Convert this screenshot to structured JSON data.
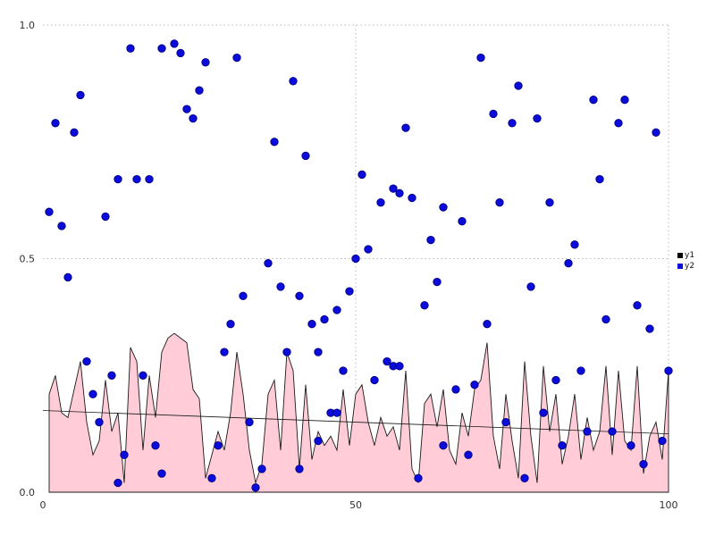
{
  "chart_data": {
    "type": "mixed",
    "title": "",
    "xlabel": "",
    "ylabel": "",
    "xlim": [
      0,
      100
    ],
    "ylim": [
      0,
      1
    ],
    "grid": "dotted",
    "legend_position": "right-outside",
    "xticks": [
      {
        "label": "0",
        "value": 0
      },
      {
        "label": "50",
        "value": 50
      },
      {
        "label": "100",
        "value": 100
      }
    ],
    "yticks": [
      {
        "label": "0.0",
        "value": 0
      },
      {
        "label": "0.5",
        "value": 0.5
      },
      {
        "label": "1.0",
        "value": 1
      }
    ],
    "series": [
      {
        "name": "y1",
        "type": "area",
        "fill_color": "#ffccd8",
        "line_color": "#1a1a1a",
        "x": [
          1,
          2,
          3,
          4,
          5,
          6,
          7,
          8,
          9,
          10,
          11,
          12,
          13,
          14,
          15,
          16,
          17,
          18,
          19,
          20,
          21,
          22,
          23,
          24,
          25,
          26,
          27,
          28,
          29,
          30,
          31,
          32,
          33,
          34,
          35,
          36,
          37,
          38,
          39,
          40,
          41,
          42,
          43,
          44,
          45,
          46,
          47,
          48,
          49,
          50,
          51,
          52,
          53,
          54,
          55,
          56,
          57,
          58,
          59,
          60,
          61,
          62,
          63,
          64,
          65,
          66,
          67,
          68,
          69,
          70,
          71,
          72,
          73,
          74,
          75,
          76,
          77,
          78,
          79,
          80,
          81,
          82,
          83,
          84,
          85,
          86,
          87,
          88,
          89,
          90,
          91,
          92,
          93,
          94,
          95,
          96,
          97,
          98,
          99,
          100
        ],
        "values": [
          0.21,
          0.25,
          0.17,
          0.16,
          0.22,
          0.28,
          0.15,
          0.08,
          0.11,
          0.24,
          0.13,
          0.17,
          0.02,
          0.31,
          0.28,
          0.09,
          0.25,
          0.16,
          0.3,
          0.33,
          0.34,
          0.33,
          0.32,
          0.22,
          0.2,
          0.03,
          0.08,
          0.13,
          0.09,
          0.17,
          0.3,
          0.21,
          0.09,
          0.02,
          0.06,
          0.21,
          0.24,
          0.09,
          0.3,
          0.26,
          0.05,
          0.23,
          0.07,
          0.13,
          0.1,
          0.12,
          0.09,
          0.22,
          0.1,
          0.21,
          0.23,
          0.15,
          0.1,
          0.16,
          0.12,
          0.14,
          0.09,
          0.26,
          0.05,
          0.02,
          0.19,
          0.21,
          0.14,
          0.22,
          0.09,
          0.06,
          0.17,
          0.12,
          0.22,
          0.24,
          0.32,
          0.12,
          0.05,
          0.21,
          0.11,
          0.03,
          0.28,
          0.12,
          0.02,
          0.27,
          0.13,
          0.21,
          0.06,
          0.12,
          0.21,
          0.07,
          0.16,
          0.09,
          0.13,
          0.27,
          0.08,
          0.26,
          0.11,
          0.09,
          0.27,
          0.04,
          0.12,
          0.15,
          0.07,
          0.26
        ]
      },
      {
        "name": "y2",
        "type": "scatter",
        "color": "#0b0bdc",
        "edge_color": "#000080",
        "x": [
          1,
          2,
          3,
          4,
          5,
          6,
          7,
          8,
          9,
          10,
          11,
          12,
          12,
          13,
          14,
          15,
          16,
          17,
          18,
          19,
          19,
          21,
          22,
          23,
          24,
          25,
          26,
          27,
          28,
          29,
          30,
          31,
          32,
          33,
          34,
          35,
          36,
          37,
          38,
          39,
          40,
          41,
          41,
          42,
          43,
          44,
          44,
          45,
          46,
          47,
          47,
          48,
          49,
          50,
          51,
          52,
          53,
          54,
          55,
          56,
          56,
          57,
          57,
          58,
          59,
          60,
          61,
          62,
          63,
          64,
          64,
          66,
          67,
          68,
          69,
          70,
          71,
          72,
          73,
          74,
          75,
          76,
          77,
          78,
          79,
          80,
          81,
          82,
          83,
          84,
          85,
          86,
          87,
          88,
          89,
          90,
          91,
          92,
          93,
          94,
          95,
          96,
          97,
          98,
          99,
          100
        ],
        "values": [
          0.6,
          0.79,
          0.57,
          0.46,
          0.77,
          0.85,
          0.28,
          0.21,
          0.15,
          0.59,
          0.25,
          0.67,
          0.02,
          0.08,
          0.95,
          0.67,
          0.25,
          0.67,
          0.1,
          0.95,
          0.04,
          0.96,
          0.94,
          0.82,
          0.8,
          0.86,
          0.92,
          0.03,
          0.1,
          0.3,
          0.36,
          0.93,
          0.42,
          0.15,
          0.01,
          0.05,
          0.49,
          0.75,
          0.44,
          0.3,
          0.88,
          0.42,
          0.05,
          0.72,
          0.36,
          0.3,
          0.11,
          0.37,
          0.17,
          0.39,
          0.17,
          0.26,
          0.43,
          0.5,
          0.68,
          0.52,
          0.24,
          0.62,
          0.28,
          0.65,
          0.27,
          0.64,
          0.27,
          0.78,
          0.63,
          0.03,
          0.4,
          0.54,
          0.45,
          0.61,
          0.1,
          0.22,
          0.58,
          0.08,
          0.23,
          0.93,
          0.36,
          0.81,
          0.62,
          0.15,
          0.79,
          0.87,
          0.03,
          0.44,
          0.8,
          0.17,
          0.62,
          0.24,
          0.1,
          0.49,
          0.53,
          0.26,
          0.13,
          0.84,
          0.67,
          0.37,
          0.13,
          0.79,
          0.84,
          0.1,
          0.4,
          0.06,
          0.35,
          0.77,
          0.11,
          0.26
        ]
      }
    ],
    "trend_line": {
      "x": [
        0,
        100
      ],
      "values": [
        0.175,
        0.125
      ]
    }
  },
  "legend": {
    "items": [
      {
        "label": "y1",
        "color": "#000000"
      },
      {
        "label": "y2",
        "color": "#0b0bdc"
      }
    ]
  }
}
